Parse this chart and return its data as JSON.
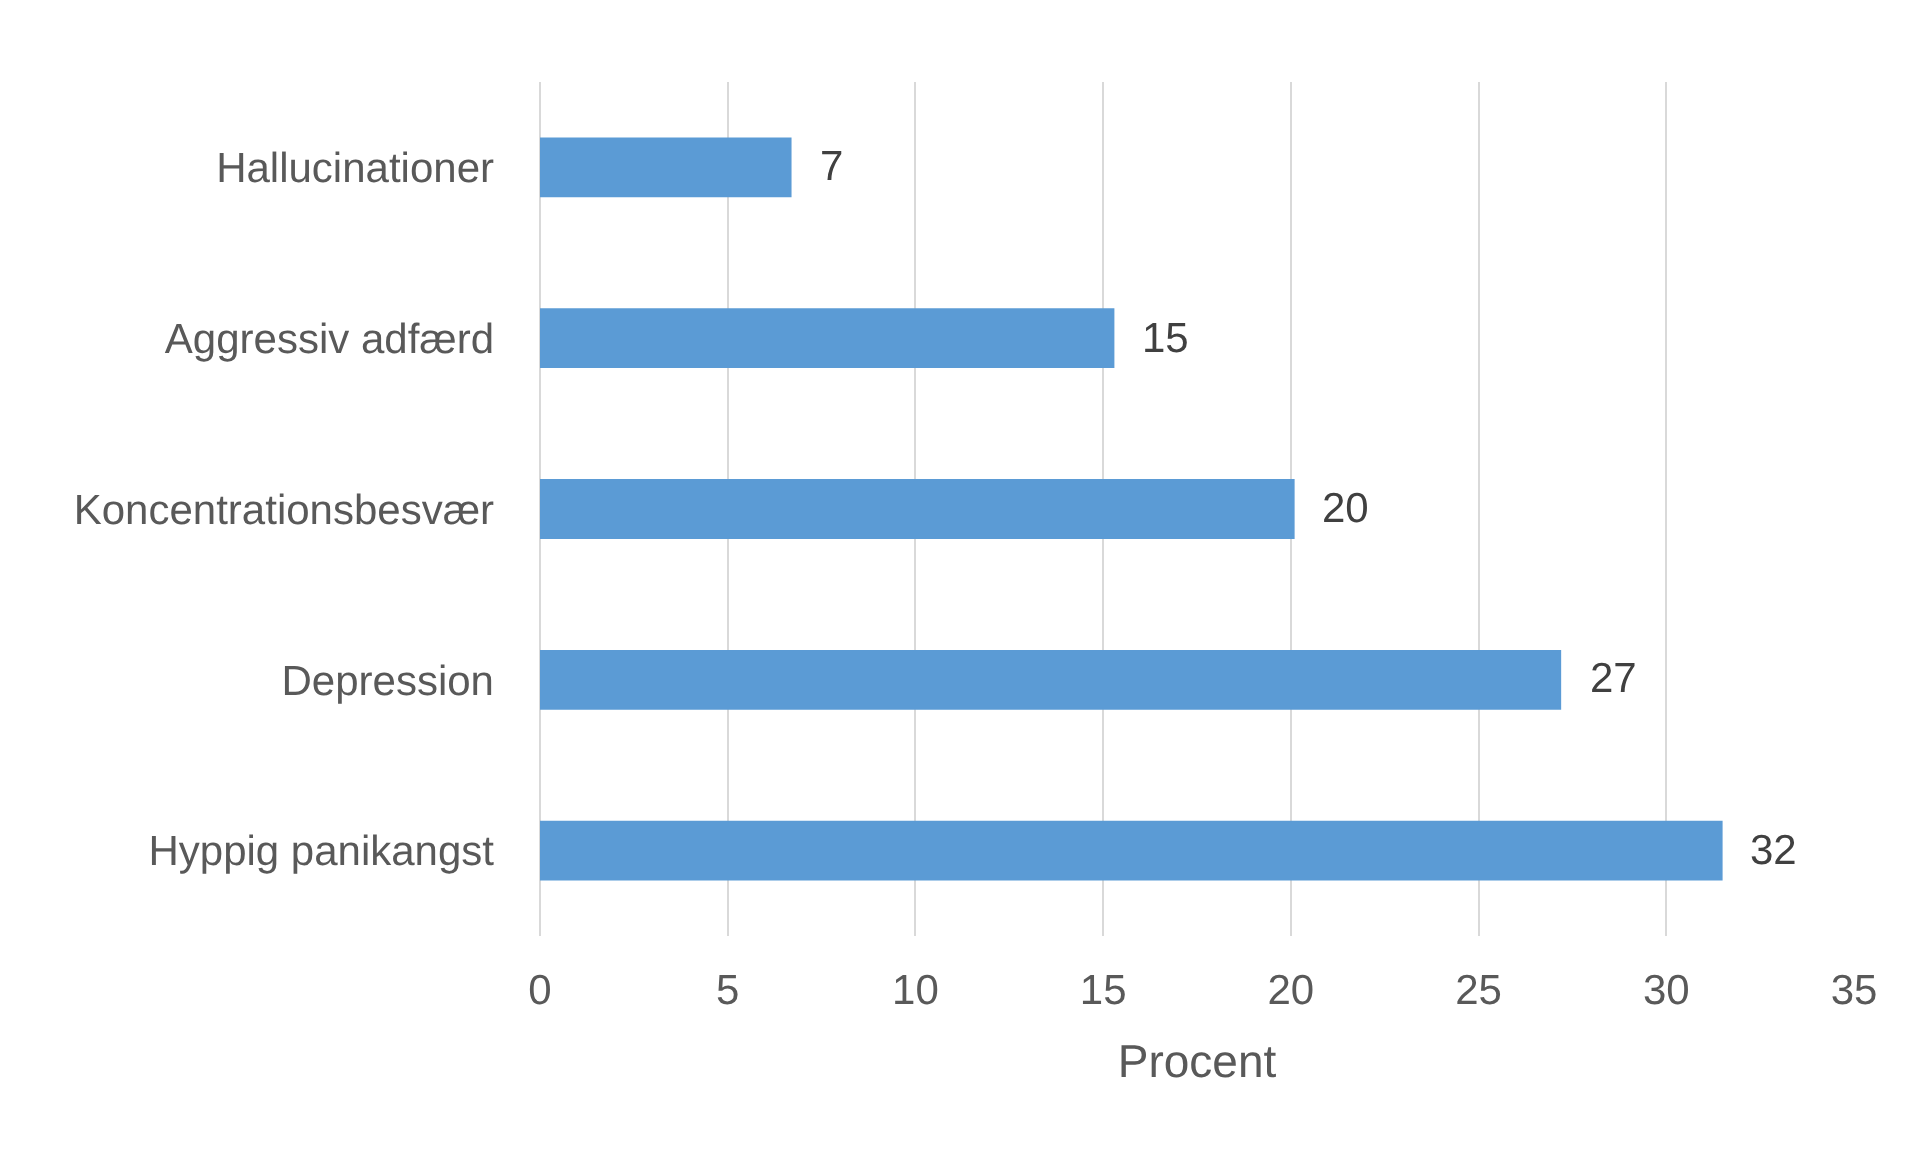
{
  "chart_data": {
    "type": "bar",
    "orientation": "horizontal",
    "xlabel": "Procent",
    "categories": [
      "Hallucinationer",
      "Aggressiv adfærd",
      "Koncentrationsbesvær",
      "Depression",
      "Hyppig panikangst"
    ],
    "values": [
      6.7,
      15.3,
      20.1,
      27.2,
      31.5
    ],
    "value_labels": [
      "7",
      "15",
      "20",
      "27",
      "32"
    ],
    "color": "#5b9bd5",
    "xlim": [
      0,
      35
    ],
    "xticks": [
      0,
      5,
      10,
      15,
      20,
      25,
      30,
      35
    ],
    "grid": "x"
  }
}
